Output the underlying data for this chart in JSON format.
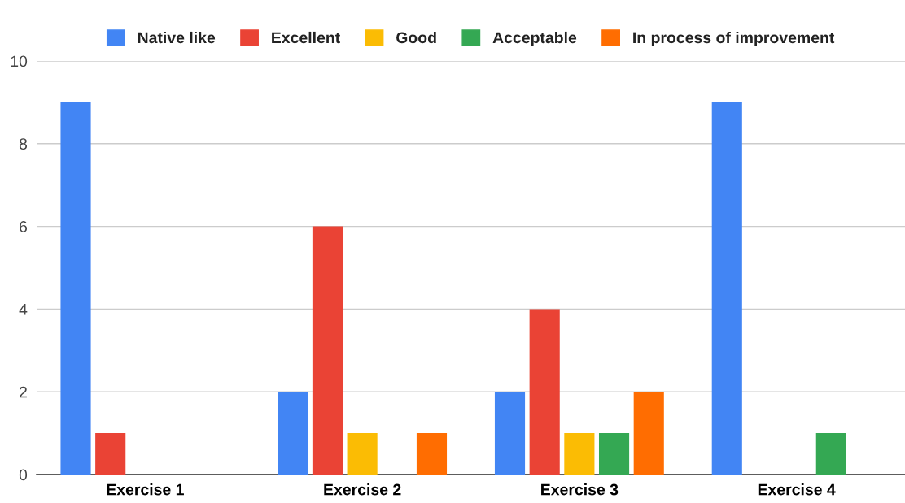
{
  "chart_data": {
    "type": "bar",
    "categories": [
      "Exercise 1",
      "Exercise 2",
      "Exercise 3",
      "Exercise 4"
    ],
    "series": [
      {
        "name": "Native like",
        "color": "#4285f4",
        "values": [
          9,
          2,
          2,
          9
        ]
      },
      {
        "name": "Excellent",
        "color": "#ea4335",
        "values": [
          1,
          6,
          4,
          0
        ]
      },
      {
        "name": "Good",
        "color": "#fbbc04",
        "values": [
          0,
          1,
          1,
          0
        ]
      },
      {
        "name": "Acceptable",
        "color": "#34a853",
        "values": [
          0,
          0,
          1,
          1
        ]
      },
      {
        "name": "In process of improvement",
        "color": "#ff6d01",
        "values": [
          0,
          1,
          2,
          0
        ]
      }
    ],
    "ylim": [
      0,
      10
    ],
    "yticks": [
      0,
      2,
      4,
      6,
      8,
      10
    ],
    "grid": "y",
    "legend": "top"
  }
}
